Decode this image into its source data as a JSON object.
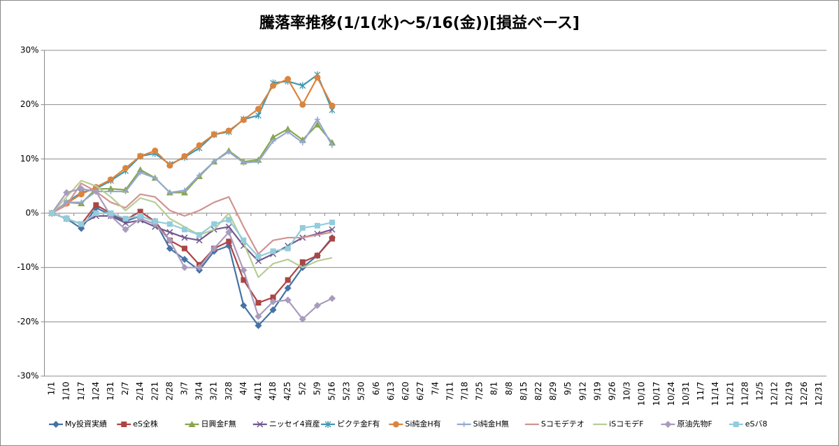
{
  "chart_data": {
    "type": "line",
    "title": "騰落率推移(1/1(水)～5/16(金))[損益ベース]",
    "categories": [
      "1/1",
      "1/10",
      "1/17",
      "1/24",
      "1/31",
      "2/7",
      "2/14",
      "2/21",
      "2/28",
      "3/7",
      "3/14",
      "3/21",
      "3/28",
      "4/4",
      "4/11",
      "4/18",
      "4/25",
      "5/2",
      "5/9",
      "5/16",
      "5/23",
      "5/30",
      "6/6",
      "6/13",
      "6/20",
      "6/27",
      "7/4",
      "7/11",
      "7/18",
      "7/25",
      "8/1",
      "8/8",
      "8/15",
      "8/22",
      "8/29",
      "9/5",
      "9/12",
      "9/19",
      "9/26",
      "10/3",
      "10/10",
      "10/17",
      "10/24",
      "10/31",
      "11/7",
      "11/14",
      "11/21",
      "11/28",
      "12/5",
      "12/12",
      "12/19",
      "12/26",
      "12/31"
    ],
    "ylim": [
      -30,
      30
    ],
    "yticks": [
      {
        "value": -30,
        "label": "-30%"
      },
      {
        "value": -20,
        "label": "-20%"
      },
      {
        "value": -10,
        "label": "-10%"
      },
      {
        "value": 0,
        "label": "0%"
      },
      {
        "value": 10,
        "label": "10%"
      },
      {
        "value": 20,
        "label": "20%"
      },
      {
        "value": 30,
        "label": "30%"
      }
    ],
    "grid": true,
    "legend": "bottom",
    "series": [
      {
        "name": "My投資実績",
        "color": "#4572a7",
        "marker": "diamond",
        "values": [
          0,
          -1,
          -2.8,
          1,
          -0.3,
          -1.5,
          -0.5,
          -1.5,
          -6.5,
          -8.5,
          -10.5,
          -7,
          -6,
          -17,
          -20.7,
          -17.8,
          -13.8,
          -10,
          -7.8,
          -4.5,
          null,
          null,
          null,
          null,
          null,
          null,
          null,
          null,
          null,
          null,
          null,
          null,
          null,
          null,
          null,
          null,
          null,
          null,
          null,
          null,
          null,
          null,
          null,
          null,
          null,
          null,
          null,
          null,
          null,
          null,
          null,
          null,
          null
        ]
      },
      {
        "name": "eS全株",
        "color": "#aa4643",
        "marker": "square",
        "values": [
          0,
          -1,
          -2,
          1.5,
          0,
          -1.2,
          0.3,
          -1.5,
          -5,
          -6.5,
          -9.5,
          -6.5,
          -5.2,
          -12.3,
          -16.5,
          -15.5,
          -12.3,
          -9,
          -7.8,
          -4.7,
          null,
          null,
          null,
          null,
          null,
          null,
          null,
          null,
          null,
          null,
          null,
          null,
          null,
          null,
          null,
          null,
          null,
          null,
          null,
          null,
          null,
          null,
          null,
          null,
          null,
          null,
          null,
          null,
          null,
          null,
          null,
          null,
          null
        ]
      },
      {
        "name": "日興金F無",
        "color": "#89a54e",
        "marker": "triangle",
        "values": [
          0,
          2,
          1.8,
          4.5,
          4.5,
          4.3,
          8,
          6.5,
          3.8,
          3.8,
          6.8,
          9.5,
          11.5,
          9.5,
          9.8,
          14,
          15.5,
          13.5,
          16.3,
          13,
          null,
          null,
          null,
          null,
          null,
          null,
          null,
          null,
          null,
          null,
          null,
          null,
          null,
          null,
          null,
          null,
          null,
          null,
          null,
          null,
          null,
          null,
          null,
          null,
          null,
          null,
          null,
          null,
          null,
          null,
          null,
          null,
          null
        ]
      },
      {
        "name": "ニッセイ4資産",
        "color": "#71588f",
        "marker": "x",
        "values": [
          0,
          -1,
          -2,
          -0.5,
          -0.5,
          -1.8,
          -1.3,
          -2.5,
          -3.5,
          -4.5,
          -5,
          -3,
          -2.5,
          -6,
          -8.8,
          -7.5,
          -6,
          -4.5,
          -3.8,
          -3,
          null,
          null,
          null,
          null,
          null,
          null,
          null,
          null,
          null,
          null,
          null,
          null,
          null,
          null,
          null,
          null,
          null,
          null,
          null,
          null,
          null,
          null,
          null,
          null,
          null,
          null,
          null,
          null,
          null,
          null,
          null,
          null,
          null
        ]
      },
      {
        "name": "ピクテ金F有",
        "color": "#4198af",
        "marker": "star",
        "values": [
          0,
          2,
          3.8,
          4.5,
          6,
          7.8,
          10.5,
          11,
          9,
          10.3,
          12,
          14.5,
          15,
          17.3,
          18,
          24,
          24.3,
          23.5,
          25.5,
          19,
          null,
          null,
          null,
          null,
          null,
          null,
          null,
          null,
          null,
          null,
          null,
          null,
          null,
          null,
          null,
          null,
          null,
          null,
          null,
          null,
          null,
          null,
          null,
          null,
          null,
          null,
          null,
          null,
          null,
          null,
          null,
          null,
          null
        ]
      },
      {
        "name": "Si純金H有",
        "color": "#db843d",
        "marker": "circle",
        "values": [
          0,
          1.8,
          3.5,
          4.8,
          6.2,
          8.3,
          10.5,
          11.5,
          8.8,
          10.5,
          12.5,
          14.5,
          15.2,
          17.2,
          19.2,
          23.5,
          24.7,
          20,
          25,
          19.8,
          null,
          null,
          null,
          null,
          null,
          null,
          null,
          null,
          null,
          null,
          null,
          null,
          null,
          null,
          null,
          null,
          null,
          null,
          null,
          null,
          null,
          null,
          null,
          null,
          null,
          null,
          null,
          null,
          null,
          null,
          null,
          null,
          null
        ]
      },
      {
        "name": "Si純金H無",
        "color": "#93a9cf",
        "marker": "plus",
        "values": [
          0,
          2,
          2,
          4,
          4,
          4,
          7.5,
          6.5,
          3.8,
          4.2,
          7,
          9.5,
          11.3,
          9.3,
          9.5,
          13.3,
          15,
          13,
          17.3,
          12.5,
          null,
          null,
          null,
          null,
          null,
          null,
          null,
          null,
          null,
          null,
          null,
          null,
          null,
          null,
          null,
          null,
          null,
          null,
          null,
          null,
          null,
          null,
          null,
          null,
          null,
          null,
          null,
          null,
          null,
          null,
          null,
          null,
          null
        ]
      },
      {
        "name": "Sコモデテオ",
        "color": "#d19392",
        "marker": "none",
        "values": [
          0,
          1.5,
          5.5,
          4,
          2,
          1,
          3.5,
          3,
          0.5,
          -0.5,
          0.5,
          2,
          3,
          -2.5,
          -7.5,
          -5,
          -4.5,
          -4.5,
          -4,
          -3.5,
          null,
          null,
          null,
          null,
          null,
          null,
          null,
          null,
          null,
          null,
          null,
          null,
          null,
          null,
          null,
          null,
          null,
          null,
          null,
          null,
          null,
          null,
          null,
          null,
          null,
          null,
          null,
          null,
          null,
          null,
          null,
          null,
          null
        ]
      },
      {
        "name": "iSコモデF",
        "color": "#b9cd96",
        "marker": "none",
        "values": [
          0,
          3,
          6,
          5,
          3,
          0.5,
          2.8,
          2,
          -1,
          -2.5,
          -4,
          -3,
          0,
          -5.5,
          -11.8,
          -9.3,
          -8.5,
          -10,
          -8.8,
          -8.2,
          null,
          null,
          null,
          null,
          null,
          null,
          null,
          null,
          null,
          null,
          null,
          null,
          null,
          null,
          null,
          null,
          null,
          null,
          null,
          null,
          null,
          null,
          null,
          null,
          null,
          null,
          null,
          null,
          null,
          null,
          null,
          null,
          null
        ]
      },
      {
        "name": "原油先物F",
        "color": "#a99bbd",
        "marker": "diamond",
        "values": [
          0,
          3.8,
          4.5,
          4,
          -0.5,
          -3,
          -1,
          -2,
          -5,
          -10,
          -10,
          -6.5,
          -3.5,
          -10.5,
          -19,
          -16.3,
          -16,
          -19.5,
          -17,
          -15.7,
          null,
          null,
          null,
          null,
          null,
          null,
          null,
          null,
          null,
          null,
          null,
          null,
          null,
          null,
          null,
          null,
          null,
          null,
          null,
          null,
          null,
          null,
          null,
          null,
          null,
          null,
          null,
          null,
          null,
          null,
          null,
          null,
          null
        ]
      },
      {
        "name": "eSバ8",
        "color": "#92cddc",
        "marker": "square",
        "values": [
          0,
          -1,
          -2,
          0,
          0,
          -1,
          -0.5,
          -1.5,
          -2,
          -3,
          -4,
          -2,
          -1.2,
          -5,
          -8,
          -7,
          -6.5,
          -2.7,
          -2.3,
          -1.7,
          null,
          null,
          null,
          null,
          null,
          null,
          null,
          null,
          null,
          null,
          null,
          null,
          null,
          null,
          null,
          null,
          null,
          null,
          null,
          null,
          null,
          null,
          null,
          null,
          null,
          null,
          null,
          null,
          null,
          null,
          null,
          null,
          null
        ]
      }
    ]
  }
}
